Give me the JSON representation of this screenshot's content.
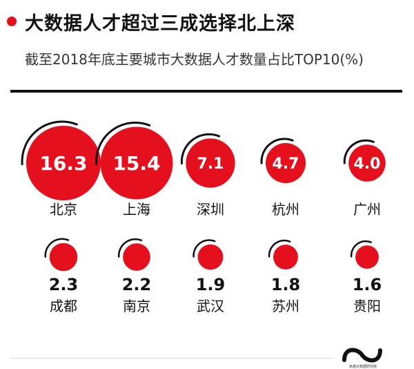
{
  "header": {
    "title": "大数据人才超过三成选择北上深",
    "subtitle": "截至2018年底主要城市大数据人才数量占比TOP10(%)"
  },
  "colors": {
    "accent": "#e4101d",
    "text": "#111111"
  },
  "chart_data": {
    "type": "bubble",
    "title": "",
    "unit": "%",
    "categories": [
      "北京",
      "上海",
      "深圳",
      "杭州",
      "广州",
      "成都",
      "南京",
      "武汉",
      "苏州",
      "贵阳"
    ],
    "values": [
      16.3,
      15.4,
      7.1,
      4.7,
      4.0,
      2.3,
      2.2,
      1.9,
      1.8,
      1.6
    ],
    "value_labels": [
      "16.3",
      "15.4",
      "7.1",
      "4.7",
      "4.0",
      "2.3",
      "2.2",
      "1.9",
      "1.8",
      "1.6"
    ]
  },
  "footer": {
    "logo_icon": "infinity-logo-icon",
    "logo_text": "高德大数据研究院"
  }
}
